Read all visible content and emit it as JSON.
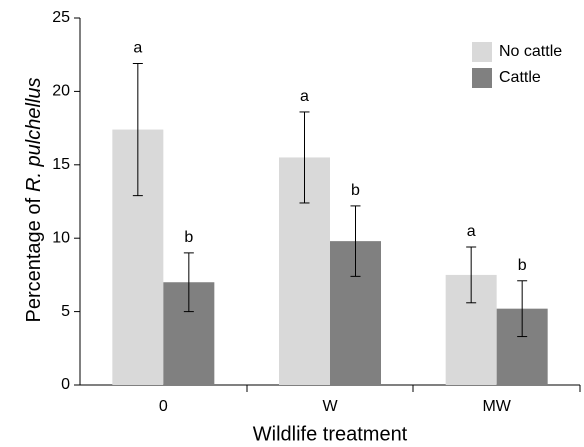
{
  "chart_data": {
    "type": "bar",
    "y_label": {
      "prefix": "Percentage of",
      "species": "R. pulchellus"
    },
    "x_label": "Wildlife treatment",
    "categories": [
      "0",
      "W",
      "MW"
    ],
    "series": [
      {
        "name": "No cattle",
        "color": "#d9d9d9",
        "values": [
          17.4,
          15.5,
          7.5
        ],
        "errors": [
          4.5,
          3.1,
          1.9
        ],
        "letters": [
          "a",
          "a",
          "a"
        ]
      },
      {
        "name": "Cattle",
        "color": "#808080",
        "values": [
          7.0,
          9.8,
          5.2
        ],
        "errors": [
          2.0,
          2.4,
          1.9
        ],
        "letters": [
          "b",
          "b",
          "b"
        ]
      }
    ],
    "ylim": [
      0,
      25
    ],
    "yticks": [
      0,
      5,
      10,
      15,
      20,
      25
    ],
    "legend": "upper right"
  }
}
